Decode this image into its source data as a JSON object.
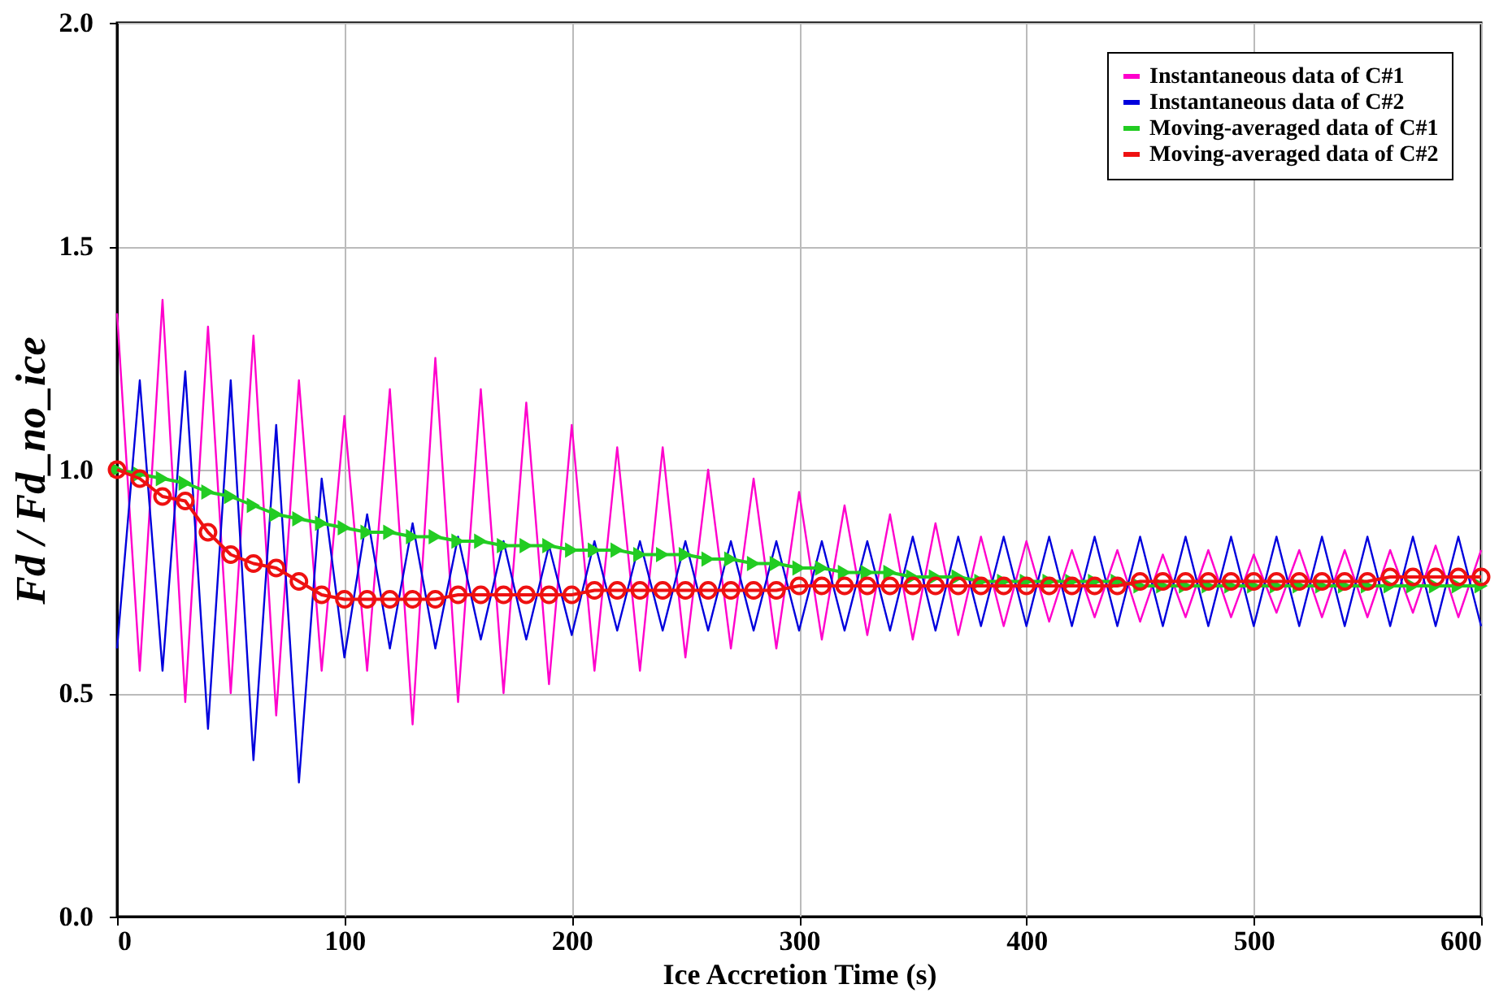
{
  "chart_data": {
    "type": "line",
    "xlabel": "Ice Accretion Time (s)",
    "ylabel": "Fd / Fd_no_ice",
    "xlim": [
      0,
      600
    ],
    "xticks": [
      0,
      100,
      200,
      300,
      400,
      500,
      600
    ],
    "ylim": [
      0,
      2
    ],
    "yticks": [
      {
        "value": 0,
        "label": "0.0"
      },
      0.5,
      {
        "value": 1,
        "label": "1.0"
      },
      1.5,
      {
        "value": 2,
        "label": "2.0"
      }
    ],
    "grid": true,
    "legend": "top right",
    "series": [
      {
        "name": "Instantaneous data of C#1",
        "color": "#ff00cc",
        "marker": "none",
        "x": [
          0,
          10,
          20,
          30,
          40,
          50,
          60,
          70,
          80,
          90,
          100,
          110,
          120,
          130,
          140,
          150,
          160,
          170,
          180,
          190,
          200,
          210,
          220,
          230,
          240,
          250,
          260,
          270,
          280,
          290,
          300,
          310,
          320,
          330,
          340,
          350,
          360,
          370,
          380,
          390,
          400,
          410,
          420,
          430,
          440,
          450,
          460,
          470,
          480,
          490,
          500,
          510,
          520,
          530,
          540,
          550,
          560,
          570,
          580,
          590,
          600
        ],
        "values": [
          1.35,
          0.55,
          1.38,
          0.48,
          1.32,
          0.5,
          1.3,
          0.45,
          1.2,
          0.55,
          1.12,
          0.55,
          1.18,
          0.43,
          1.25,
          0.48,
          1.18,
          0.5,
          1.15,
          0.52,
          1.1,
          0.55,
          1.05,
          0.55,
          1.05,
          0.58,
          1.0,
          0.6,
          0.98,
          0.6,
          0.95,
          0.62,
          0.92,
          0.63,
          0.9,
          0.62,
          0.88,
          0.63,
          0.85,
          0.65,
          0.84,
          0.66,
          0.82,
          0.67,
          0.82,
          0.66,
          0.81,
          0.67,
          0.82,
          0.67,
          0.81,
          0.68,
          0.82,
          0.67,
          0.82,
          0.67,
          0.82,
          0.68,
          0.83,
          0.67,
          0.82
        ]
      },
      {
        "name": "Instantaneous data of C#2",
        "color": "#0000dd",
        "marker": "none",
        "x": [
          0,
          10,
          20,
          30,
          40,
          50,
          60,
          70,
          80,
          90,
          100,
          110,
          120,
          130,
          140,
          150,
          160,
          170,
          180,
          190,
          200,
          210,
          220,
          230,
          240,
          250,
          260,
          270,
          280,
          290,
          300,
          310,
          320,
          330,
          340,
          350,
          360,
          370,
          380,
          390,
          400,
          410,
          420,
          430,
          440,
          450,
          460,
          470,
          480,
          490,
          500,
          510,
          520,
          530,
          540,
          550,
          560,
          570,
          580,
          590,
          600
        ],
        "values": [
          0.6,
          1.2,
          0.55,
          1.22,
          0.42,
          1.2,
          0.35,
          1.1,
          0.3,
          0.98,
          0.58,
          0.9,
          0.6,
          0.88,
          0.6,
          0.85,
          0.62,
          0.84,
          0.62,
          0.83,
          0.63,
          0.84,
          0.64,
          0.84,
          0.64,
          0.84,
          0.64,
          0.84,
          0.64,
          0.84,
          0.64,
          0.84,
          0.64,
          0.84,
          0.64,
          0.85,
          0.64,
          0.85,
          0.65,
          0.85,
          0.65,
          0.85,
          0.65,
          0.85,
          0.65,
          0.85,
          0.65,
          0.85,
          0.65,
          0.85,
          0.65,
          0.85,
          0.65,
          0.85,
          0.65,
          0.85,
          0.65,
          0.85,
          0.65,
          0.85,
          0.65
        ]
      },
      {
        "name": "Moving-averaged data of C#1",
        "color": "#22cc22",
        "marker": "triangle",
        "x": [
          0,
          10,
          20,
          30,
          40,
          50,
          60,
          70,
          80,
          90,
          100,
          110,
          120,
          130,
          140,
          150,
          160,
          170,
          180,
          190,
          200,
          210,
          220,
          230,
          240,
          250,
          260,
          270,
          280,
          290,
          300,
          310,
          320,
          330,
          340,
          350,
          360,
          370,
          380,
          390,
          400,
          410,
          420,
          430,
          440,
          450,
          460,
          470,
          480,
          490,
          500,
          510,
          520,
          530,
          540,
          550,
          560,
          570,
          580,
          590,
          600
        ],
        "values": [
          1.0,
          0.99,
          0.98,
          0.97,
          0.95,
          0.94,
          0.92,
          0.9,
          0.89,
          0.88,
          0.87,
          0.86,
          0.86,
          0.85,
          0.85,
          0.84,
          0.84,
          0.83,
          0.83,
          0.83,
          0.82,
          0.82,
          0.82,
          0.81,
          0.81,
          0.81,
          0.8,
          0.8,
          0.79,
          0.79,
          0.78,
          0.78,
          0.77,
          0.77,
          0.77,
          0.76,
          0.76,
          0.76,
          0.75,
          0.75,
          0.75,
          0.75,
          0.75,
          0.75,
          0.75,
          0.74,
          0.74,
          0.74,
          0.74,
          0.74,
          0.74,
          0.74,
          0.74,
          0.74,
          0.74,
          0.74,
          0.74,
          0.74,
          0.74,
          0.74,
          0.74
        ]
      },
      {
        "name": "Moving-averaged data of C#2",
        "color": "#ee1111",
        "marker": "circle",
        "x": [
          0,
          10,
          20,
          30,
          40,
          50,
          60,
          70,
          80,
          90,
          100,
          110,
          120,
          130,
          140,
          150,
          160,
          170,
          180,
          190,
          200,
          210,
          220,
          230,
          240,
          250,
          260,
          270,
          280,
          290,
          300,
          310,
          320,
          330,
          340,
          350,
          360,
          370,
          380,
          390,
          400,
          410,
          420,
          430,
          440,
          450,
          460,
          470,
          480,
          490,
          500,
          510,
          520,
          530,
          540,
          550,
          560,
          570,
          580,
          590,
          600
        ],
        "values": [
          1.0,
          0.98,
          0.94,
          0.93,
          0.86,
          0.81,
          0.79,
          0.78,
          0.75,
          0.72,
          0.71,
          0.71,
          0.71,
          0.71,
          0.71,
          0.72,
          0.72,
          0.72,
          0.72,
          0.72,
          0.72,
          0.73,
          0.73,
          0.73,
          0.73,
          0.73,
          0.73,
          0.73,
          0.73,
          0.73,
          0.74,
          0.74,
          0.74,
          0.74,
          0.74,
          0.74,
          0.74,
          0.74,
          0.74,
          0.74,
          0.74,
          0.74,
          0.74,
          0.74,
          0.74,
          0.75,
          0.75,
          0.75,
          0.75,
          0.75,
          0.75,
          0.75,
          0.75,
          0.75,
          0.75,
          0.75,
          0.76,
          0.76,
          0.76,
          0.76,
          0.76
        ]
      }
    ]
  }
}
